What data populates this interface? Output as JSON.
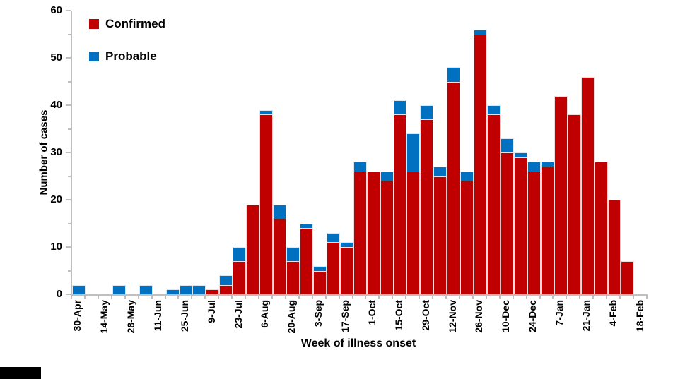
{
  "chart_data": {
    "type": "bar",
    "stacked": true,
    "title": "",
    "xlabel": "Week of illness onset",
    "ylabel": "Number of cases",
    "ylim": [
      0,
      60
    ],
    "yticks": [
      0,
      10,
      20,
      30,
      40,
      50,
      60
    ],
    "minor_ytick_step": 5,
    "grid": false,
    "legend_position": "top-left",
    "x_tick_label_every": 2,
    "categories": [
      "30-Apr",
      "7-May",
      "14-May",
      "21-May",
      "28-May",
      "4-Jun",
      "11-Jun",
      "18-Jun",
      "25-Jun",
      "2-Jul",
      "9-Jul",
      "16-Jul",
      "23-Jul",
      "30-Jul",
      "6-Aug",
      "13-Aug",
      "20-Aug",
      "27-Aug",
      "3-Sep",
      "10-Sep",
      "17-Sep",
      "24-Sep",
      "1-Oct",
      "8-Oct",
      "15-Oct",
      "22-Oct",
      "29-Oct",
      "5-Nov",
      "12-Nov",
      "19-Nov",
      "26-Nov",
      "3-Dec",
      "10-Dec",
      "17-Dec",
      "24-Dec",
      "31-Dec",
      "7-Jan",
      "14-Jan",
      "21-Jan",
      "28-Jan",
      "4-Feb",
      "11-Feb",
      "18-Feb"
    ],
    "shown_x_tick_labels": [
      "30-Apr",
      "14-May",
      "28-May",
      "11-Jun",
      "25-Jun",
      "9-Jul",
      "23-Jul",
      "6-Aug",
      "20-Aug",
      "3-Sep",
      "17-Sep",
      "1-Oct",
      "15-Oct",
      "29-Oct",
      "12-Nov",
      "26-Nov",
      "10-Dec",
      "24-Dec",
      "7-Jan",
      "21-Jan",
      "4-Feb",
      "18-Feb"
    ],
    "series": [
      {
        "name": "Confirmed",
        "color": "#C00000",
        "values": [
          0,
          0,
          0,
          0,
          0,
          0,
          0,
          0,
          0,
          0,
          1,
          2,
          7,
          19,
          38,
          16,
          7,
          14,
          5,
          11,
          10,
          26,
          26,
          24,
          38,
          26,
          37,
          25,
          45,
          24,
          55,
          38,
          30,
          29,
          26,
          27,
          42,
          38,
          46,
          28,
          20,
          7,
          0
        ]
      },
      {
        "name": "Probable",
        "color": "#0070C0",
        "values": [
          2,
          0,
          0,
          2,
          0,
          2,
          0,
          1,
          2,
          2,
          0,
          2,
          3,
          0,
          1,
          3,
          3,
          1,
          1,
          2,
          1,
          2,
          0,
          2,
          3,
          8,
          3,
          2,
          3,
          2,
          1,
          2,
          3,
          1,
          2,
          1,
          0,
          0,
          0,
          0,
          0,
          0,
          0
        ]
      }
    ],
    "axis_color": "#BFBFBF"
  }
}
